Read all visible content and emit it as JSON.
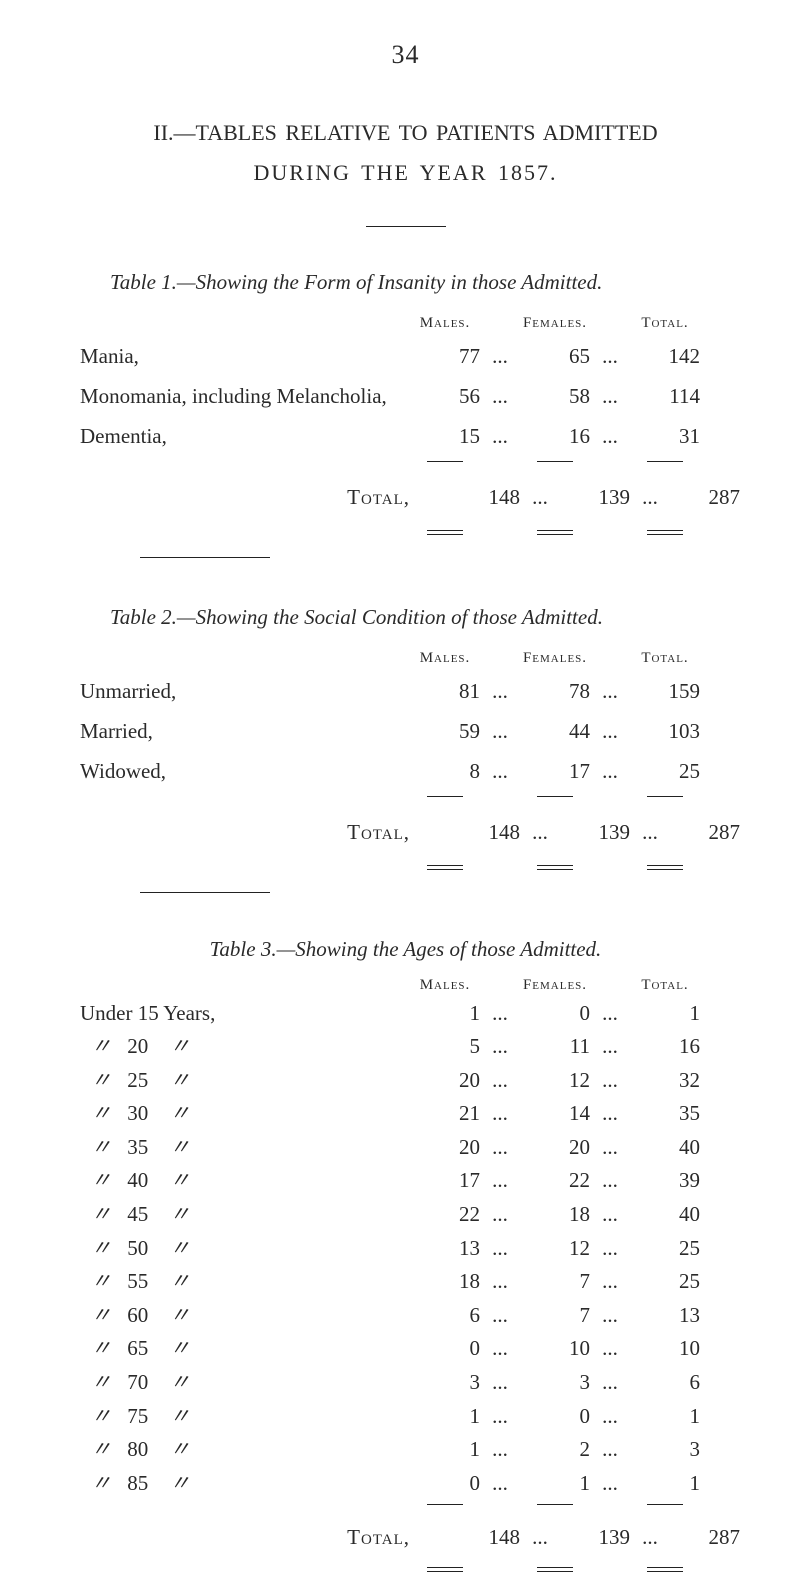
{
  "page_number": "34",
  "section_heading": "II.—TABLES RELATIVE TO PATIENTS ADMITTED",
  "sub_heading": "DURING THE YEAR 1857.",
  "col_labels": {
    "males": "Males.",
    "females": "Females.",
    "total": "Total."
  },
  "ellipsis": "...",
  "total_label": "Total,",
  "table1": {
    "title_pre": "Table ",
    "title_num": "1.",
    "title_rest": "—Showing the Form of Insanity in those Admitted.",
    "rows": [
      {
        "label": "Mania,",
        "m": "77",
        "f": "65",
        "t": "142"
      },
      {
        "label": "Monomania, including Melancholia,",
        "m": "56",
        "f": "58",
        "t": "114"
      },
      {
        "label": "Dementia,",
        "m": "15",
        "f": "16",
        "t": "31"
      }
    ],
    "total": {
      "m": "148",
      "f": "139",
      "t": "287"
    }
  },
  "table2": {
    "title_pre": "Table ",
    "title_num": "2.",
    "title_rest": "—Showing the Social Condition of those Admitted.",
    "rows": [
      {
        "label": "Unmarried,",
        "m": "81",
        "f": "78",
        "t": "159"
      },
      {
        "label": "Married,",
        "m": "59",
        "f": "44",
        "t": "103"
      },
      {
        "label": "Widowed,",
        "m": "8",
        "f": "17",
        "t": "25"
      }
    ],
    "total": {
      "m": "148",
      "f": "139",
      "t": "287"
    }
  },
  "table3": {
    "title_pre": "Table ",
    "title_num": "3.",
    "title_rest": "—Showing the Ages of those Admitted.",
    "first_label": "Under 15 Years,",
    "ditto_mark": "〃",
    "rows": [
      {
        "age": "15",
        "m": "1",
        "f": "0",
        "t": "1"
      },
      {
        "age": "20",
        "m": "5",
        "f": "11",
        "t": "16"
      },
      {
        "age": "25",
        "m": "20",
        "f": "12",
        "t": "32"
      },
      {
        "age": "30",
        "m": "21",
        "f": "14",
        "t": "35"
      },
      {
        "age": "35",
        "m": "20",
        "f": "20",
        "t": "40"
      },
      {
        "age": "40",
        "m": "17",
        "f": "22",
        "t": "39"
      },
      {
        "age": "45",
        "m": "22",
        "f": "18",
        "t": "40"
      },
      {
        "age": "50",
        "m": "13",
        "f": "12",
        "t": "25"
      },
      {
        "age": "55",
        "m": "18",
        "f": "7",
        "t": "25"
      },
      {
        "age": "60",
        "m": "6",
        "f": "7",
        "t": "13"
      },
      {
        "age": "65",
        "m": "0",
        "f": "10",
        "t": "10"
      },
      {
        "age": "70",
        "m": "3",
        "f": "3",
        "t": "6"
      },
      {
        "age": "75",
        "m": "1",
        "f": "0",
        "t": "1"
      },
      {
        "age": "80",
        "m": "1",
        "f": "2",
        "t": "3"
      },
      {
        "age": "85",
        "m": "0",
        "f": "1",
        "t": "1"
      }
    ],
    "total": {
      "m": "148",
      "f": "139",
      "t": "287"
    }
  }
}
